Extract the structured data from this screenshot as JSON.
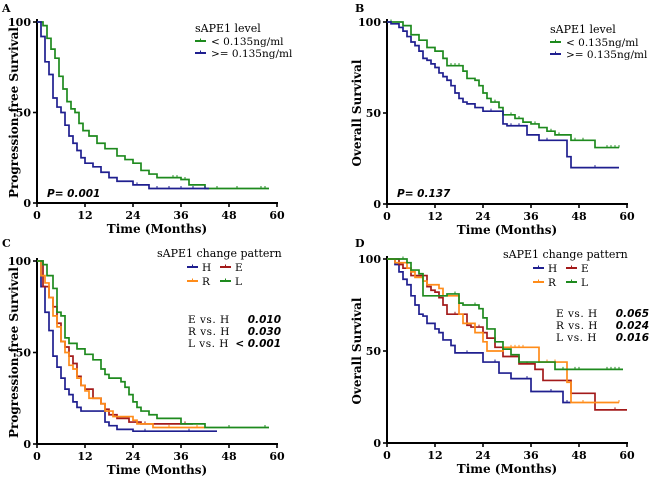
{
  "colors": {
    "H": "#1f1f8f",
    "E": "#a31a1a",
    "R": "#ff8c1a",
    "L": "#1e8a1e",
    "low": "#1e8a1e",
    "high": "#1f1f8f"
  },
  "chart_data": [
    {
      "panel": "A",
      "type": "line",
      "title": "",
      "xlabel": "Time (Months)",
      "ylabel": "Progression-free Survival",
      "xlim": [
        0,
        60
      ],
      "ylim": [
        0,
        100
      ],
      "xticks": [
        "0",
        "12",
        "24",
        "36",
        "48",
        "60"
      ],
      "yticks": [
        "0",
        "50",
        "100"
      ],
      "legend_title": "sAPE1 level",
      "legend_position": "top-right",
      "annotation": "P= 0.001",
      "series": [
        {
          "name": "< 0.135ng/ml",
          "color_key": "low",
          "x": [
            0,
            1.5,
            2.5,
            3.5,
            4.5,
            5.5,
            6.5,
            7.5,
            8.5,
            9.5,
            10.5,
            11.5,
            13,
            15,
            17,
            20,
            22,
            24,
            26,
            28,
            30,
            36,
            38,
            42,
            58
          ],
          "y": [
            100,
            98,
            91,
            85,
            80,
            70,
            63,
            56,
            52,
            50,
            44,
            40,
            37,
            33,
            30,
            26,
            24,
            22,
            18,
            16,
            14,
            13,
            10,
            8,
            8
          ],
          "censor_x": [
            34,
            35,
            37,
            45,
            50,
            56,
            57
          ]
        },
        {
          "name": ">= 0.135ng/ml",
          "color_key": "high",
          "x": [
            0,
            1,
            2,
            3,
            4,
            5,
            6,
            7,
            8,
            9,
            10,
            11,
            12,
            14,
            16,
            18,
            20,
            24,
            28,
            43
          ],
          "y": [
            100,
            92,
            78,
            71,
            58,
            53,
            50,
            43,
            37,
            33,
            29,
            25,
            22,
            20,
            17,
            14,
            12,
            10,
            8,
            8
          ],
          "censor_x": [
            25,
            30,
            33,
            36,
            39,
            42
          ]
        }
      ]
    },
    {
      "panel": "B",
      "type": "line",
      "xlabel": "Time (Months)",
      "ylabel": "Overall Survival",
      "xlim": [
        0,
        60
      ],
      "ylim": [
        0,
        100
      ],
      "xticks": [
        "0",
        "12",
        "24",
        "36",
        "48",
        "60"
      ],
      "yticks": [
        "0",
        "50",
        "100"
      ],
      "legend_title": "sAPE1 level",
      "legend_position": "top-right",
      "annotation": "P= 0.137",
      "series": [
        {
          "name": "< 0.135ng/ml",
          "color_key": "low",
          "x": [
            0,
            4,
            6,
            8,
            10,
            12,
            14,
            15,
            19,
            20,
            22,
            23,
            24,
            25,
            26,
            28,
            29,
            32,
            34,
            36,
            38,
            40,
            42,
            46,
            52,
            58
          ],
          "y": [
            100,
            98,
            93,
            90,
            86,
            84,
            80,
            76,
            73,
            69,
            68,
            65,
            61,
            58,
            56,
            53,
            49,
            47,
            45,
            44,
            42,
            40,
            38,
            35,
            31,
            31
          ],
          "censor_x": [
            1,
            4,
            16,
            17,
            18,
            22,
            27,
            31,
            33,
            37,
            41,
            43,
            47,
            49,
            55,
            56,
            57,
            58
          ]
        },
        {
          "name": ">= 0.135ng/ml",
          "color_key": "high",
          "x": [
            0,
            1,
            3,
            4,
            5,
            6,
            7,
            8,
            9,
            10,
            11,
            12,
            13,
            14,
            15,
            16,
            17,
            18,
            19,
            20,
            22,
            24,
            29,
            30,
            35,
            38,
            45,
            46,
            58
          ],
          "y": [
            100,
            99,
            97,
            95,
            92,
            89,
            87,
            84,
            80,
            79,
            77,
            75,
            72,
            70,
            68,
            65,
            61,
            58,
            56,
            55,
            53,
            51,
            44,
            43,
            38,
            35,
            26,
            20,
            20
          ],
          "censor_x": [
            26,
            31,
            33,
            40,
            52
          ]
        }
      ]
    },
    {
      "panel": "C",
      "type": "line",
      "xlabel": "Time (Months)",
      "ylabel": "Progression-free Survival",
      "xlim": [
        0,
        60
      ],
      "ylim": [
        0,
        100
      ],
      "xticks": [
        "0",
        "12",
        "24",
        "36",
        "48",
        "60"
      ],
      "yticks": [
        "0",
        "50",
        "100"
      ],
      "legend_title": "sAPE1 change pattern",
      "legend_position": "top-right",
      "legend_entries": [
        "H",
        "E",
        "R",
        "L"
      ],
      "comparisons": [
        {
          "label": "E vs. H",
          "p": "0.010"
        },
        {
          "label": "R vs. H",
          "p": "0.030"
        },
        {
          "label": "L vs. H",
          "p": "< 0.001"
        }
      ],
      "series": [
        {
          "name": "H",
          "color_key": "H",
          "x": [
            0,
            1,
            2,
            3,
            4,
            5,
            6,
            7,
            8,
            9,
            10,
            11,
            12,
            17,
            18,
            20,
            24,
            45
          ],
          "y": [
            100,
            86,
            72,
            62,
            48,
            42,
            36,
            30,
            27,
            23,
            20,
            18,
            18,
            12,
            10,
            8,
            7,
            7
          ],
          "censor_x": [
            27,
            38
          ]
        },
        {
          "name": "E",
          "color_key": "E",
          "x": [
            0,
            1.5,
            3,
            4,
            5,
            6,
            7,
            8,
            9,
            10,
            11,
            12,
            14,
            16,
            17,
            18,
            20,
            23,
            26,
            39
          ],
          "y": [
            100,
            86,
            80,
            75,
            66,
            56,
            53,
            48,
            44,
            37,
            32,
            30,
            25,
            22,
            19,
            16,
            14,
            12,
            11,
            11
          ],
          "censor_x": [
            27,
            37
          ]
        },
        {
          "name": "R",
          "color_key": "R",
          "x": [
            0,
            1,
            2,
            3,
            4,
            5,
            6,
            7,
            8,
            9,
            10,
            11,
            12,
            13,
            16,
            17,
            19,
            24,
            25,
            29,
            42
          ],
          "y": [
            100,
            92,
            88,
            80,
            70,
            64,
            56,
            50,
            43,
            41,
            36,
            32,
            29,
            25,
            22,
            18,
            15,
            13,
            11,
            9,
            9
          ],
          "censor_x": [
            33,
            40
          ]
        },
        {
          "name": "L",
          "color_key": "L",
          "x": [
            0,
            1.5,
            2.5,
            4,
            5,
            6,
            7,
            8,
            10,
            12,
            14,
            16,
            17,
            18,
            21,
            22,
            23,
            24,
            25,
            26,
            28,
            30,
            36,
            37,
            42,
            58
          ],
          "y": [
            100,
            98,
            92,
            85,
            72,
            70,
            58,
            55,
            52,
            49,
            46,
            41,
            38,
            36,
            34,
            31,
            27,
            23,
            20,
            18,
            16,
            14,
            11,
            11,
            9,
            9
          ],
          "censor_x": [
            48,
            57
          ]
        }
      ]
    },
    {
      "panel": "D",
      "type": "line",
      "xlabel": "Time (Months)",
      "ylabel": "Overall Survival",
      "xlim": [
        0,
        60
      ],
      "ylim": [
        0,
        100
      ],
      "xticks": [
        "0",
        "12",
        "24",
        "36",
        "48",
        "60"
      ],
      "yticks": [
        "0",
        "50",
        "100"
      ],
      "legend_title": "sAPE1 change pattern",
      "legend_position": "top-right",
      "legend_entries": [
        "H",
        "E",
        "R",
        "L"
      ],
      "comparisons": [
        {
          "label": "E vs. H",
          "p": "0.065"
        },
        {
          "label": "R vs. H",
          "p": "0.024"
        },
        {
          "label": "L vs. H",
          "p": "0.016"
        }
      ],
      "series": [
        {
          "name": "H",
          "color_key": "H",
          "x": [
            0,
            2,
            3,
            4,
            5,
            6,
            7,
            8,
            9,
            10,
            12,
            13,
            14,
            16,
            17,
            18,
            24,
            28,
            31,
            36,
            44,
            46
          ],
          "y": [
            100,
            97,
            93,
            89,
            86,
            80,
            75,
            70,
            69,
            65,
            62,
            60,
            56,
            53,
            49,
            49,
            44,
            38,
            35,
            28,
            22,
            22
          ],
          "censor_x": [
            20,
            27,
            35,
            41,
            45
          ]
        },
        {
          "name": "E",
          "color_key": "E",
          "x": [
            0,
            3,
            4,
            6,
            10,
            11,
            12,
            13,
            14,
            15,
            20,
            21,
            24,
            25,
            27,
            29,
            33,
            37,
            39,
            46,
            52,
            60
          ],
          "y": [
            100,
            97,
            95,
            91,
            85,
            83,
            82,
            79,
            75,
            70,
            64,
            63,
            60,
            57,
            52,
            47,
            43,
            40,
            34,
            27,
            18,
            18
          ],
          "censor_x": [
            17,
            23,
            35,
            57
          ]
        },
        {
          "name": "R",
          "color_key": "R",
          "x": [
            0,
            2,
            5,
            6,
            7,
            9,
            10,
            13,
            14,
            18,
            19,
            22,
            24,
            25,
            29,
            38,
            45,
            46,
            58
          ],
          "y": [
            100,
            98,
            95,
            93,
            90,
            88,
            86,
            84,
            80,
            70,
            65,
            60,
            55,
            50,
            52,
            44,
            33,
            22,
            22
          ],
          "censor_x": [
            31,
            32,
            33,
            34,
            40,
            42,
            49,
            58
          ]
        },
        {
          "name": "L",
          "color_key": "L",
          "x": [
            0,
            5,
            6,
            8,
            9,
            15,
            18,
            19,
            23,
            24,
            25,
            27,
            29,
            31,
            33,
            38,
            42,
            59
          ],
          "y": [
            100,
            98,
            94,
            92,
            80,
            81,
            76,
            75,
            73,
            68,
            62,
            55,
            51,
            48,
            44,
            44,
            40,
            40
          ],
          "censor_x": [
            4,
            17,
            22,
            44,
            47,
            48,
            55,
            56,
            57,
            58
          ]
        }
      ]
    }
  ]
}
